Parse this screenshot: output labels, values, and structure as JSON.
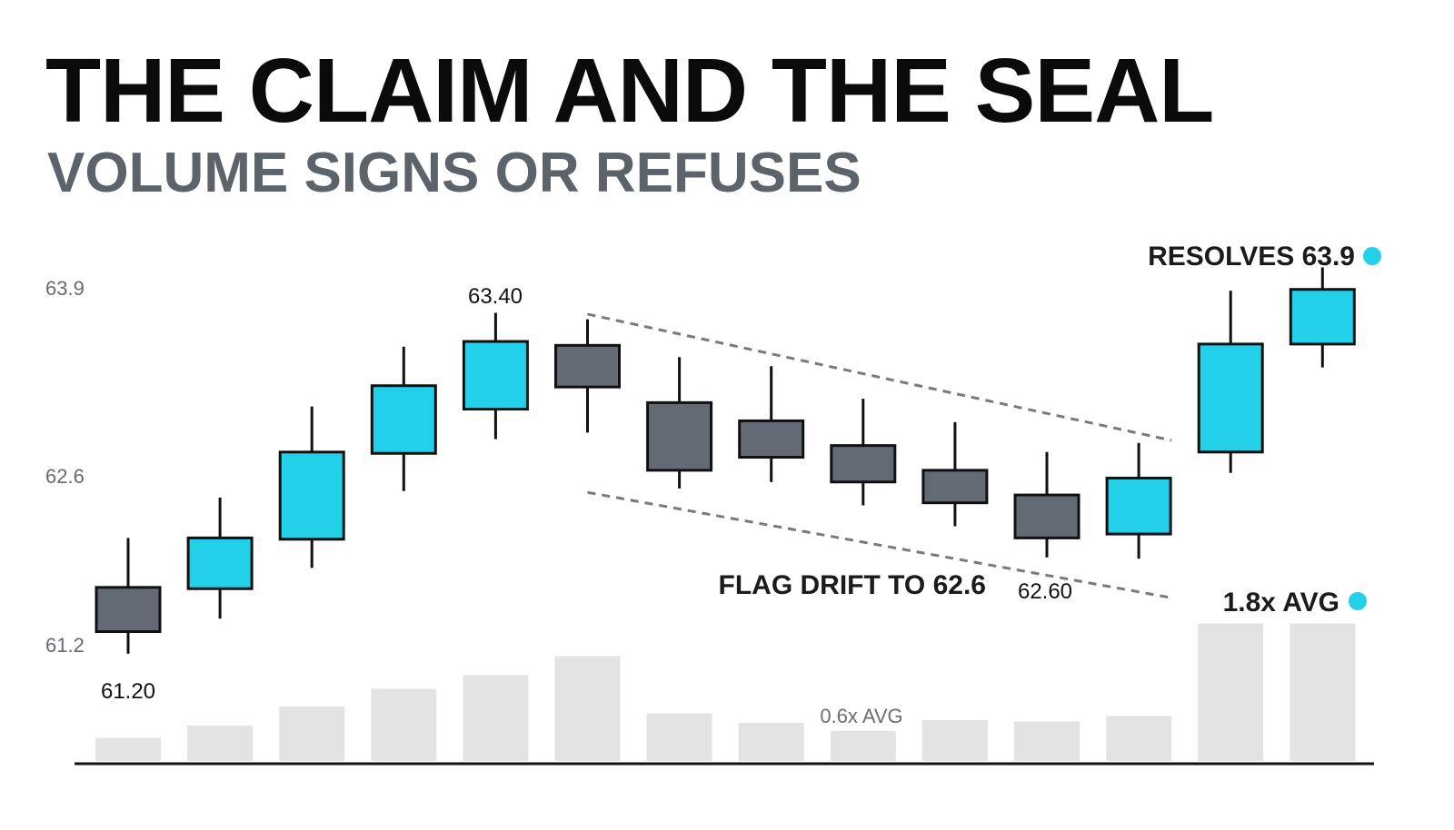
{
  "header": {
    "title": "THE CLAIM AND THE SEAL",
    "subtitle": "VOLUME SIGNS OR REFUSES"
  },
  "colors": {
    "bull": "#22d0ea",
    "bear": "#646a73",
    "outline": "#111111",
    "volume": "#e3e3e3",
    "channel": "#7a7a7a",
    "dot": "#22d0ea"
  },
  "chart_data": {
    "type": "candlestick",
    "title": "",
    "xlabel": "",
    "ylabel": "",
    "ylim": [
      60.78,
      64.2
    ],
    "yticks": [
      "63.9",
      "62.6",
      "61.2"
    ],
    "grid": false,
    "candles": [
      {
        "open": 61.57,
        "close": 61.23,
        "high": 61.95,
        "low": 61.06
      },
      {
        "open": 61.56,
        "close": 61.95,
        "high": 62.26,
        "low": 61.33
      },
      {
        "open": 61.94,
        "close": 62.61,
        "high": 62.96,
        "low": 61.72
      },
      {
        "open": 62.6,
        "close": 63.12,
        "high": 63.42,
        "low": 62.31
      },
      {
        "open": 62.94,
        "close": 63.46,
        "high": 63.68,
        "low": 62.71
      },
      {
        "open": 63.43,
        "close": 63.11,
        "high": 63.63,
        "low": 62.76
      },
      {
        "open": 62.99,
        "close": 62.47,
        "high": 63.34,
        "low": 62.33
      },
      {
        "open": 62.85,
        "close": 62.57,
        "high": 63.27,
        "low": 62.38
      },
      {
        "open": 62.66,
        "close": 62.38,
        "high": 63.02,
        "low": 62.2
      },
      {
        "open": 62.47,
        "close": 62.22,
        "high": 62.84,
        "low": 62.04
      },
      {
        "open": 62.28,
        "close": 61.95,
        "high": 62.61,
        "low": 61.8
      },
      {
        "open": 61.98,
        "close": 62.41,
        "high": 62.68,
        "low": 61.79
      },
      {
        "open": 62.61,
        "close": 63.44,
        "high": 63.85,
        "low": 62.45
      },
      {
        "open": 63.44,
        "close": 63.86,
        "high": 64.03,
        "low": 63.26
      }
    ],
    "volume_relative": [
      0.17,
      0.26,
      0.4,
      0.53,
      0.63,
      0.77,
      0.35,
      0.28,
      0.22,
      0.3,
      0.29,
      0.33,
      1.01,
      1.01
    ],
    "price_labels": [
      {
        "candle": 0,
        "text": "61.20",
        "at": "low"
      },
      {
        "candle": 4,
        "text": "63.40",
        "at": "high"
      },
      {
        "candle": 10,
        "text": "62.60",
        "at": "low"
      }
    ],
    "flag_channel": {
      "upper": {
        "from_candle": 5,
        "to_candle": 11,
        "y_start": 63.67,
        "y_end": 62.7
      },
      "lower": {
        "from_candle": 5,
        "to_candle": 11,
        "y_start": 62.3,
        "y_end": 61.49
      }
    },
    "annotations": {
      "resolves": "RESOLVES 63.9",
      "flag": "FLAG DRIFT TO 62.6",
      "volume_high": "1.8x AVG",
      "volume_low": "0.6x AVG"
    }
  }
}
